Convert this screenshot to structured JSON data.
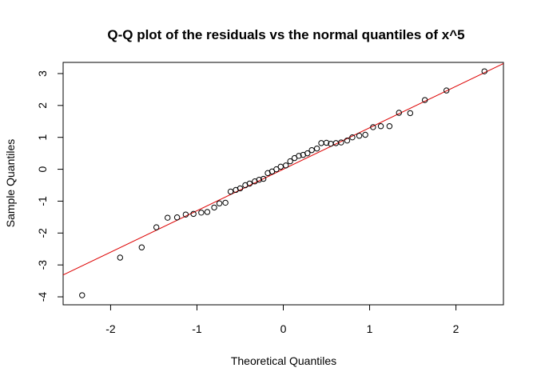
{
  "chart_data": {
    "type": "scatter",
    "title": "Q-Q plot of the residuals vs the normal quantiles of x^5",
    "xlabel": "Theoretical Quantiles",
    "ylabel": "Sample Quantiles",
    "xlim": [
      -2.55,
      2.55
    ],
    "ylim": [
      -4.25,
      3.35
    ],
    "x_ticks": [
      -2,
      -1,
      0,
      1,
      2
    ],
    "y_ticks": [
      -4,
      -3,
      -2,
      -1,
      0,
      1,
      2,
      3
    ],
    "x_tick_labels": [
      "-2",
      "-1",
      "0",
      "1",
      "2"
    ],
    "y_tick_labels": [
      "-4",
      "-3",
      "-2",
      "-1",
      "0",
      "1",
      "2",
      "3"
    ],
    "grid": false,
    "point_color": "#000000",
    "line_color": "#dd0000",
    "reference_line": {
      "intercept": 0.0,
      "slope": 1.3
    },
    "points": [
      {
        "x": -2.33,
        "y": -3.95
      },
      {
        "x": -1.89,
        "y": -2.77
      },
      {
        "x": -1.64,
        "y": -2.45
      },
      {
        "x": -1.47,
        "y": -1.82
      },
      {
        "x": -1.34,
        "y": -1.52
      },
      {
        "x": -1.23,
        "y": -1.51
      },
      {
        "x": -1.13,
        "y": -1.42
      },
      {
        "x": -1.04,
        "y": -1.4
      },
      {
        "x": -0.95,
        "y": -1.36
      },
      {
        "x": -0.88,
        "y": -1.34
      },
      {
        "x": -0.8,
        "y": -1.2
      },
      {
        "x": -0.74,
        "y": -1.07
      },
      {
        "x": -0.67,
        "y": -1.05
      },
      {
        "x": -0.61,
        "y": -0.7
      },
      {
        "x": -0.55,
        "y": -0.65
      },
      {
        "x": -0.5,
        "y": -0.6
      },
      {
        "x": -0.44,
        "y": -0.5
      },
      {
        "x": -0.39,
        "y": -0.45
      },
      {
        "x": -0.33,
        "y": -0.38
      },
      {
        "x": -0.28,
        "y": -0.33
      },
      {
        "x": -0.23,
        "y": -0.3
      },
      {
        "x": -0.18,
        "y": -0.12
      },
      {
        "x": -0.13,
        "y": -0.07
      },
      {
        "x": -0.08,
        "y": 0.0
      },
      {
        "x": -0.03,
        "y": 0.08
      },
      {
        "x": 0.03,
        "y": 0.12
      },
      {
        "x": 0.08,
        "y": 0.25
      },
      {
        "x": 0.13,
        "y": 0.35
      },
      {
        "x": 0.18,
        "y": 0.42
      },
      {
        "x": 0.23,
        "y": 0.45
      },
      {
        "x": 0.28,
        "y": 0.5
      },
      {
        "x": 0.33,
        "y": 0.6
      },
      {
        "x": 0.39,
        "y": 0.65
      },
      {
        "x": 0.44,
        "y": 0.82
      },
      {
        "x": 0.5,
        "y": 0.83
      },
      {
        "x": 0.55,
        "y": 0.8
      },
      {
        "x": 0.61,
        "y": 0.82
      },
      {
        "x": 0.67,
        "y": 0.84
      },
      {
        "x": 0.74,
        "y": 0.9
      },
      {
        "x": 0.8,
        "y": 1.0
      },
      {
        "x": 0.88,
        "y": 1.05
      },
      {
        "x": 0.95,
        "y": 1.08
      },
      {
        "x": 1.04,
        "y": 1.32
      },
      {
        "x": 1.13,
        "y": 1.35
      },
      {
        "x": 1.23,
        "y": 1.35
      },
      {
        "x": 1.34,
        "y": 1.77
      },
      {
        "x": 1.47,
        "y": 1.76
      },
      {
        "x": 1.64,
        "y": 2.17
      },
      {
        "x": 1.89,
        "y": 2.47
      },
      {
        "x": 2.33,
        "y": 3.07
      }
    ]
  }
}
